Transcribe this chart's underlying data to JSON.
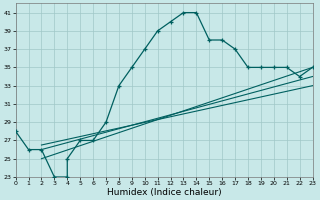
{
  "xlabel": "Humidex (Indice chaleur)",
  "xlim": [
    0,
    23
  ],
  "ylim": [
    23,
    42
  ],
  "yticks": [
    23,
    25,
    27,
    29,
    31,
    33,
    35,
    37,
    39,
    41
  ],
  "xticks": [
    0,
    1,
    2,
    3,
    4,
    5,
    6,
    7,
    8,
    9,
    10,
    11,
    12,
    13,
    14,
    15,
    16,
    17,
    18,
    19,
    20,
    21,
    22,
    23
  ],
  "bg_color": "#c8e8e8",
  "grid_color": "#a0c8c8",
  "line_color": "#006060",
  "main_x": [
    0,
    1,
    2,
    3,
    4,
    4,
    5,
    6,
    7,
    8,
    9,
    10,
    11,
    12,
    13,
    14,
    15,
    16,
    17,
    18,
    19,
    20,
    21,
    22,
    23
  ],
  "main_y": [
    28,
    26,
    26,
    23,
    23,
    25,
    27,
    27,
    29,
    33,
    35,
    37,
    39,
    40,
    41,
    41,
    38,
    38,
    37,
    35,
    35,
    35,
    35,
    34,
    35
  ],
  "trend1_x": [
    2,
    23
  ],
  "trend1_y": [
    25,
    35
  ],
  "trend2_x": [
    2,
    23
  ],
  "trend2_y": [
    26,
    34
  ],
  "trend3_x": [
    2,
    23
  ],
  "trend3_y": [
    26.5,
    33
  ],
  "figsize": [
    3.2,
    2.0
  ],
  "dpi": 100
}
